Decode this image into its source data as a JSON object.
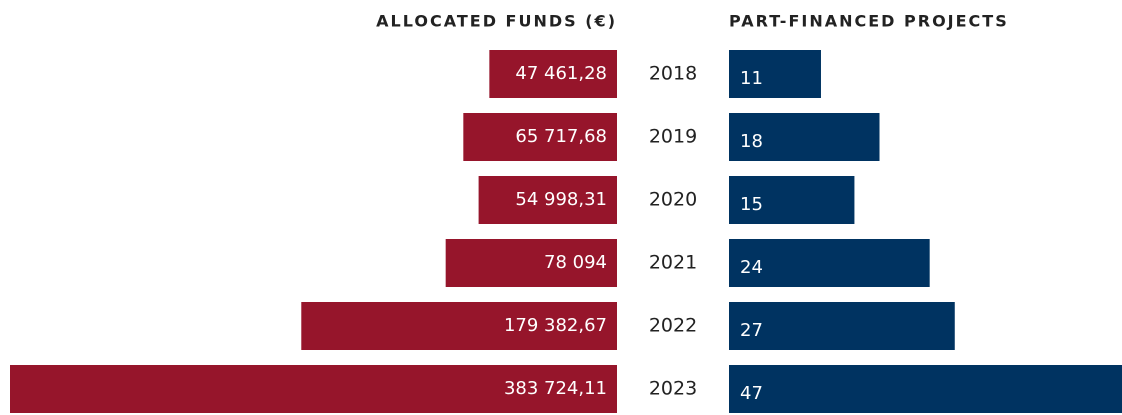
{
  "chart_data": {
    "type": "butterfly",
    "categories": [
      "2018",
      "2019",
      "2020",
      "2021",
      "2022",
      "2023"
    ],
    "series": [
      {
        "name": "ALLOCATED FUNDS (€)",
        "color": "#96152b",
        "values": [
          47461.28,
          65717.68,
          54998.31,
          78094,
          179382.67,
          383724.11
        ],
        "value_labels": [
          "47 461,28",
          "65 717,68",
          "54 998,31",
          "78 094",
          "179 382,67",
          "383 724,11"
        ]
      },
      {
        "name": "PART-FINANCED PROJECTS",
        "color": "#003361",
        "values": [
          11,
          18,
          15,
          24,
          27,
          47
        ]
      }
    ]
  }
}
